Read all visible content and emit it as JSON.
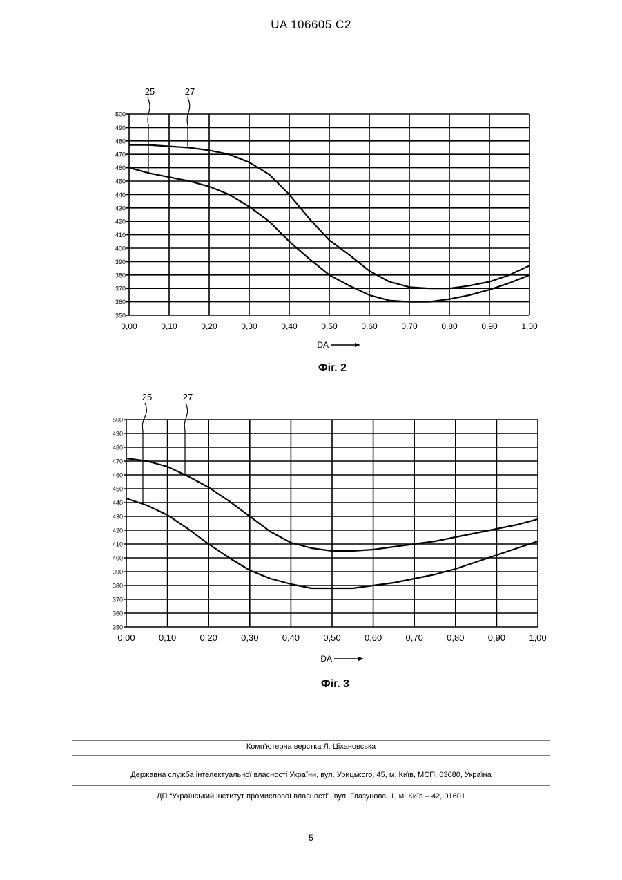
{
  "header": {
    "patent_number": "UA   106605   C2"
  },
  "figures": [
    {
      "caption": "Фіг. 2",
      "chart_data": {
        "type": "line",
        "xlabel": "DA",
        "x_ticks": [
          "0,00",
          "0,10",
          "0,20",
          "0,30",
          "0,40",
          "0,50",
          "0,60",
          "0,70",
          "0,80",
          "0,90",
          "1,00"
        ],
        "y_ticks": [
          "350",
          "360",
          "370",
          "380",
          "390",
          "400",
          "410",
          "420",
          "430",
          "440",
          "450",
          "460",
          "470",
          "480",
          "490",
          "500"
        ],
        "xlim": [
          0,
          1
        ],
        "ylim": [
          350,
          500
        ],
        "series": [
          {
            "name": "25",
            "x": [
              0,
              0.05,
              0.1,
              0.15,
              0.2,
              0.25,
              0.3,
              0.35,
              0.4,
              0.45,
              0.5,
              0.55,
              0.6,
              0.65,
              0.7,
              0.75,
              0.8,
              0.85,
              0.9,
              0.95,
              1.0
            ],
            "values": [
              460,
              456,
              453,
              450,
              446,
              440,
              431,
              420,
              405,
              392,
              380,
              372,
              365,
              361,
              360,
              360,
              362,
              365,
              369,
              374,
              380
            ]
          },
          {
            "name": "27",
            "x": [
              0,
              0.05,
              0.1,
              0.15,
              0.2,
              0.25,
              0.3,
              0.35,
              0.4,
              0.45,
              0.5,
              0.55,
              0.6,
              0.65,
              0.7,
              0.75,
              0.8,
              0.85,
              0.9,
              0.95,
              1.0
            ],
            "values": [
              477,
              477,
              476,
              475,
              473,
              470,
              464,
              455,
              440,
              422,
              406,
              395,
              383,
              375,
              371,
              370,
              370,
              372,
              375,
              380,
              387
            ]
          }
        ]
      }
    },
    {
      "caption": "Фіг. 3",
      "chart_data": {
        "type": "line",
        "xlabel": "DA",
        "x_ticks": [
          "0,00",
          "0,10",
          "0,20",
          "0,30",
          "0,40",
          "0,50",
          "0,60",
          "0,70",
          "0,80",
          "0,90",
          "1,00"
        ],
        "y_ticks": [
          "350",
          "360",
          "370",
          "380",
          "390",
          "400",
          "410",
          "420",
          "430",
          "440",
          "450",
          "460",
          "470",
          "480",
          "490",
          "500"
        ],
        "xlim": [
          0,
          1
        ],
        "ylim": [
          350,
          500
        ],
        "series": [
          {
            "name": "25",
            "x": [
              0,
              0.05,
              0.1,
              0.15,
              0.2,
              0.25,
              0.3,
              0.35,
              0.4,
              0.45,
              0.5,
              0.55,
              0.6,
              0.65,
              0.7,
              0.75,
              0.8,
              0.85,
              0.9,
              0.95,
              1.0
            ],
            "values": [
              443,
              438,
              431,
              421,
              410,
              400,
              391,
              385,
              381,
              378,
              378,
              378,
              380,
              382,
              385,
              388,
              392,
              397,
              402,
              407,
              412
            ]
          },
          {
            "name": "27",
            "x": [
              0,
              0.05,
              0.1,
              0.15,
              0.2,
              0.25,
              0.3,
              0.35,
              0.4,
              0.45,
              0.5,
              0.55,
              0.6,
              0.65,
              0.7,
              0.75,
              0.8,
              0.85,
              0.9,
              0.95,
              1.0
            ],
            "values": [
              472,
              470,
              466,
              459,
              451,
              441,
              430,
              419,
              411,
              407,
              405,
              405,
              406,
              408,
              410,
              412,
              415,
              418,
              421,
              424,
              428
            ]
          }
        ]
      }
    }
  ],
  "footer": {
    "line1": "Комп’ютерна верстка Л. Ціхановська",
    "line2": "Державна служба інтелектуальної власності України, вул. Урицького, 45, м. Київ, МСП, 03680, Україна",
    "line3": "ДП “Український інститут промислової власності”, вул. Глазунова, 1, м. Київ – 42, 01601",
    "page_number": "5"
  }
}
